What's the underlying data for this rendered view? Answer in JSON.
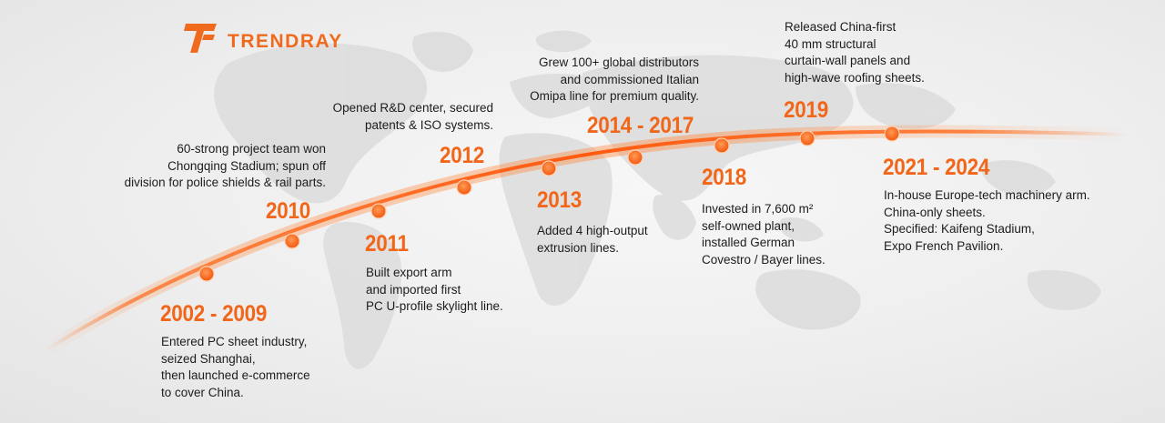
{
  "brand": {
    "name": "TRENDRAY",
    "color": "#f06a1e"
  },
  "colors": {
    "accent": "#f2661a",
    "text": "#1c1c1c"
  },
  "milestones": [
    {
      "year": "2002 - 2009",
      "text": "Entered PC sheet industry,\nseized Shanghai,\nthen launched e-commerce\nto cover China."
    },
    {
      "year": "2010",
      "text": "60-strong project team won\nChongqing Stadium; spun off\ndivision for police shields & rail parts."
    },
    {
      "year": "2011",
      "text": "Built export arm\nand imported first\nPC U-profile skylight line."
    },
    {
      "year": "2012",
      "text": "Opened R&D center, secured\npatents & ISO systems."
    },
    {
      "year": "2013",
      "text": "Added 4 high-output\nextrusion lines."
    },
    {
      "year": "2014 - 2017",
      "text": "Grew 100+ global distributors\nand commissioned Italian\nOmipa line for premium quality."
    },
    {
      "year": "2018",
      "text": "Invested in 7,600 m²\nself-owned plant,\ninstalled German\nCovestro / Bayer lines."
    },
    {
      "year": "2019",
      "text": "Released China-first\n40 mm structural\ncurtain-wall panels and\nhigh-wave roofing sheets."
    },
    {
      "year": "2021 - 2024",
      "text": "In-house Europe-tech machinery arm.\nChina-only sheets.\nSpecified: Kaifeng Stadium,\nExpo French Pavilion."
    }
  ]
}
